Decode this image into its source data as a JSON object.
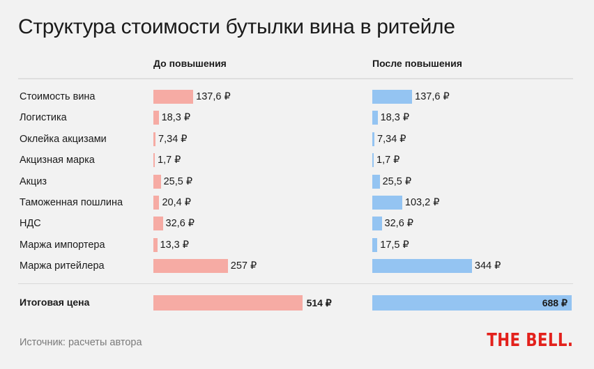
{
  "title": "Структура стоимости бутылки вина в ритейле",
  "source": "Источник: расчеты автора",
  "brand": "THE BELL.",
  "colors": {
    "before": "#f6aba4",
    "after": "#94c4f2",
    "brand": "#e3211c"
  },
  "chart_data": {
    "type": "bar",
    "orientation": "horizontal",
    "title": "Структура стоимости бутылки вина в ритейле",
    "categories": [
      "Стоимость вина",
      "Логистика",
      "Оклейка акцизами",
      "Акцизная марка",
      "Акциз",
      "Таможенная пошлина",
      "НДС",
      "Маржа импортера",
      "Маржа ритейлера"
    ],
    "series": [
      {
        "name": "До повышения",
        "values": [
          137.6,
          18.3,
          7.34,
          1.7,
          25.5,
          20.4,
          32.6,
          13.3,
          257
        ],
        "labels": [
          "137,6 ₽",
          "18,3 ₽",
          "7,34 ₽",
          "1,7 ₽",
          "25,5 ₽",
          "20,4 ₽",
          "32,6 ₽",
          "13,3 ₽",
          "257 ₽"
        ],
        "total": 514,
        "total_label": "514 ₽"
      },
      {
        "name": "После повышения",
        "values": [
          137.6,
          18.3,
          7.34,
          1.7,
          25.5,
          103.2,
          32.6,
          17.5,
          344
        ],
        "labels": [
          "137,6 ₽",
          "18,3 ₽",
          "7,34 ₽",
          "1,7 ₽",
          "25,5 ₽",
          "103,2 ₽",
          "32,6 ₽",
          "17,5 ₽",
          "344 ₽"
        ],
        "total": 688,
        "total_label": "688 ₽"
      }
    ],
    "total_category": "Итоговая цена",
    "currency": "₽",
    "grid": false
  }
}
